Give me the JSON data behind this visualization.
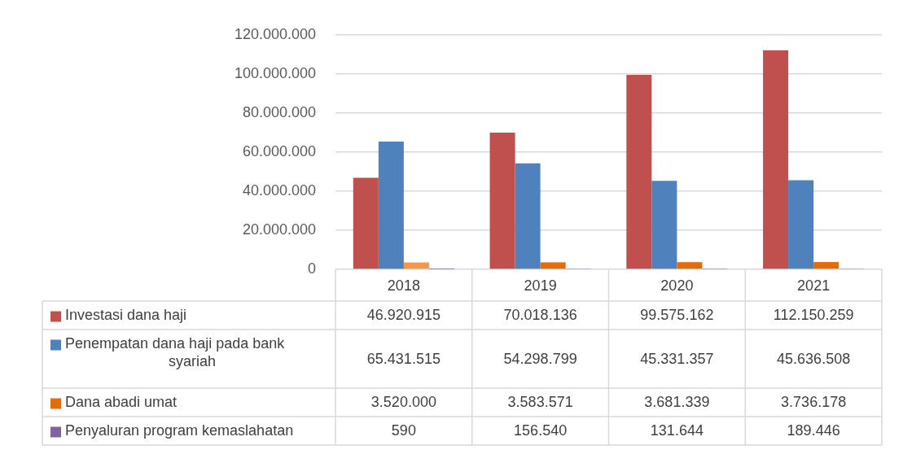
{
  "chart_data": {
    "type": "bar",
    "categories": [
      "2018",
      "2019",
      "2020",
      "2021"
    ],
    "series": [
      {
        "name": "Investasi dana haji",
        "color": "#c0504d",
        "values": [
          46920915,
          70018136,
          99575162,
          112150259
        ],
        "value_labels": [
          "46.920.915",
          "70.018.136",
          "99.575.162",
          "112.150.259"
        ]
      },
      {
        "name": "Penempatan dana haji pada bank syariah",
        "color": "#4f81bd",
        "values": [
          65431515,
          54298799,
          45331357,
          45636508
        ],
        "value_labels": [
          "65.431.515",
          "54.298.799",
          "45.331.357",
          "45.636.508"
        ]
      },
      {
        "name": "Dana abadi umat",
        "color": "#e46c0a",
        "colors": [
          "#f79646",
          "#e46c0a",
          "#e46c0a",
          "#e46c0a"
        ],
        "values": [
          3520000,
          3583571,
          3681339,
          3736178
        ],
        "value_labels": [
          "3.520.000",
          "3.583.571",
          "3.681.339",
          "3.736.178"
        ]
      },
      {
        "name": "Penyaluran program kemaslahatan",
        "color": "#8064a2",
        "values": [
          590,
          156540,
          131644,
          189446
        ],
        "value_labels": [
          "590",
          "156.540",
          "131.644",
          "189.446"
        ]
      }
    ],
    "ylim": [
      0,
      120000000
    ],
    "yticks": [
      0,
      {
        "value": 20000000,
        "label": "20.000.000"
      },
      {
        "value": 40000000,
        "label": "40.000.000"
      },
      {
        "value": 60000000,
        "label": "60.000.000"
      },
      {
        "value": 80000000,
        "label": "80.000.000"
      },
      {
        "value": 100000000,
        "label": "100.000.000"
      },
      {
        "value": 120000000,
        "label": "120.000.000"
      }
    ],
    "grid": "y",
    "legend": "bottom"
  }
}
